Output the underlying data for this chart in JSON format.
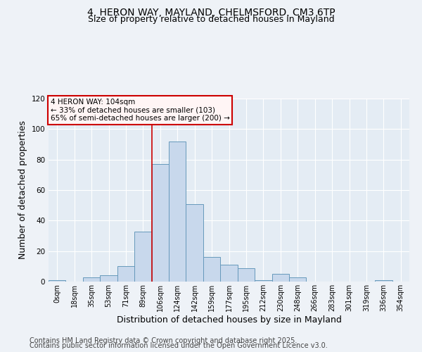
{
  "title_line1": "4, HERON WAY, MAYLAND, CHELMSFORD, CM3 6TP",
  "title_line2": "Size of property relative to detached houses in Mayland",
  "xlabel": "Distribution of detached houses by size in Mayland",
  "ylabel": "Number of detached properties",
  "annotation_line1": "4 HERON WAY: 104sqm",
  "annotation_line2": "← 33% of detached houses are smaller (103)",
  "annotation_line3": "65% of semi-detached houses are larger (200) →",
  "footnote1": "Contains HM Land Registry data © Crown copyright and database right 2025.",
  "footnote2": "Contains public sector information licensed under the Open Government Licence v3.0.",
  "bin_labels": [
    "0sqm",
    "18sqm",
    "35sqm",
    "53sqm",
    "71sqm",
    "89sqm",
    "106sqm",
    "124sqm",
    "142sqm",
    "159sqm",
    "177sqm",
    "195sqm",
    "212sqm",
    "230sqm",
    "248sqm",
    "266sqm",
    "283sqm",
    "301sqm",
    "319sqm",
    "336sqm",
    "354sqm"
  ],
  "bar_values": [
    1,
    0,
    3,
    4,
    10,
    33,
    77,
    92,
    51,
    16,
    11,
    9,
    1,
    5,
    3,
    0,
    0,
    0,
    0,
    1,
    0
  ],
  "bar_color": "#c8d8ec",
  "bar_edge_color": "#6699bb",
  "property_line_x": 6.0,
  "ylim": [
    0,
    120
  ],
  "yticks": [
    0,
    20,
    40,
    60,
    80,
    100,
    120
  ],
  "background_color": "#eef2f7",
  "plot_bg_color": "#e4ecf4",
  "grid_color": "#ffffff",
  "annotation_line_color": "#cc0000",
  "title_fontsize": 10,
  "subtitle_fontsize": 9,
  "axis_label_fontsize": 9,
  "tick_fontsize": 7,
  "footnote_fontsize": 7
}
